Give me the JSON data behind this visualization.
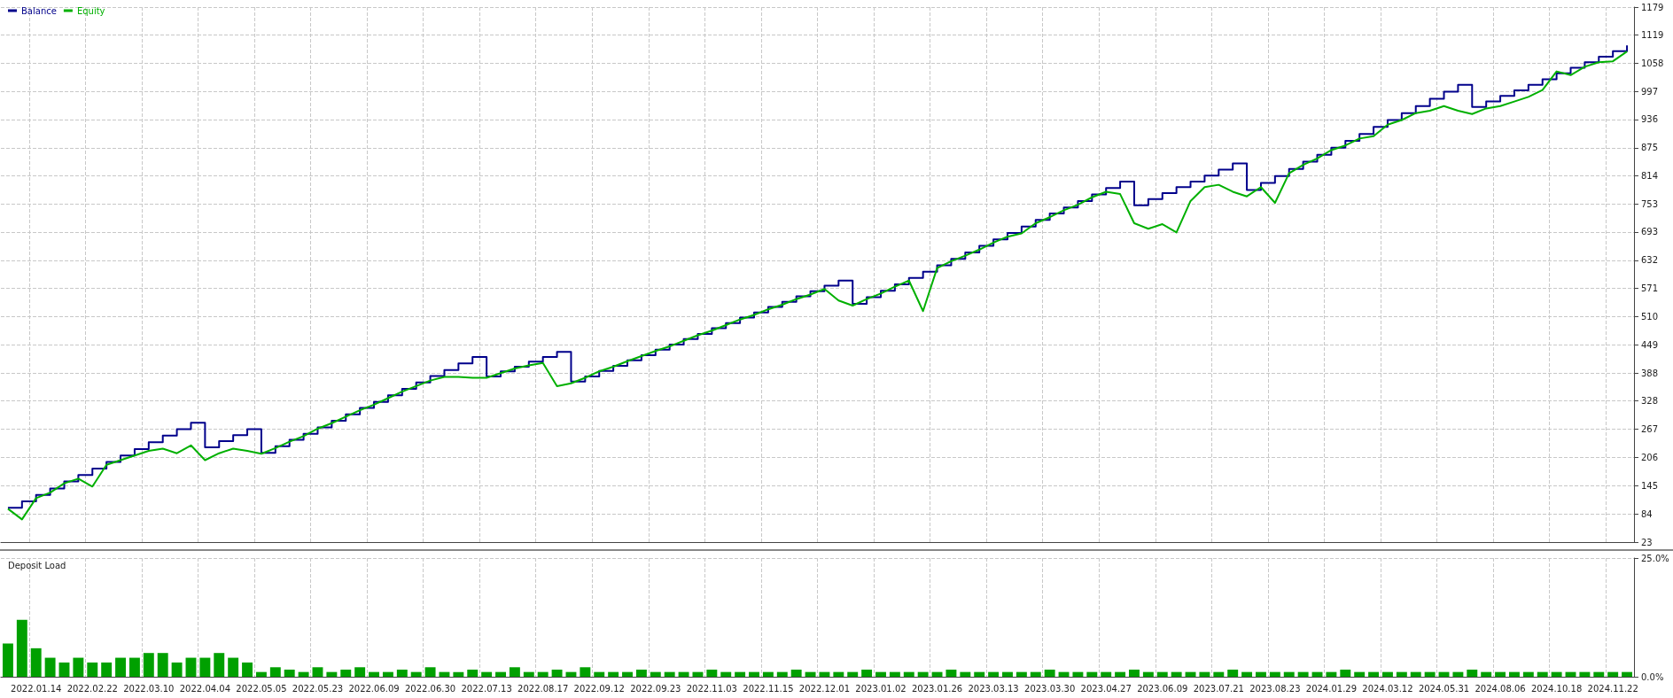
{
  "chart_data": [
    {
      "type": "line",
      "legend": "top left",
      "grid": true,
      "tick_labels": "y",
      "categories": [
        null,
        null,
        "2022.01.14",
        null,
        null,
        null,
        "2022.02.22",
        null,
        null,
        null,
        "2022.03.10",
        null,
        null,
        null,
        "2022.04.04",
        null,
        null,
        null,
        "2022.05.05",
        null,
        null,
        null,
        "2022.05.23",
        null,
        null,
        null,
        "2022.06.09",
        null,
        null,
        null,
        "2022.06.30",
        null,
        null,
        null,
        "2022.07.13",
        null,
        null,
        null,
        "2022.08.17",
        null,
        null,
        null,
        "2022.09.12",
        null,
        null,
        null,
        "2022.09.23",
        null,
        null,
        null,
        "2022.11.03",
        null,
        null,
        null,
        "2022.11.15",
        null,
        null,
        null,
        "2022.12.01",
        null,
        null,
        null,
        "2023.01.02",
        null,
        null,
        null,
        "2023.01.26",
        null,
        null,
        null,
        "2023.03.13",
        null,
        null,
        null,
        "2023.03.30",
        null,
        null,
        null,
        "2023.04.27",
        null,
        null,
        null,
        "2023.06.09",
        null,
        null,
        null,
        "2023.07.21",
        null,
        null,
        null,
        "2023.08.23",
        null,
        null,
        null,
        "2024.01.29",
        null,
        null,
        null,
        "2024.03.12",
        null,
        null,
        null,
        "2024.05.31",
        null,
        null,
        null,
        "2024.08.06",
        null,
        null,
        null,
        "2024.10.18",
        null,
        null,
        null,
        "2024.11.22",
        null
      ],
      "ylim": [
        23,
        1179
      ],
      "yticks": [
        23,
        84,
        145,
        206,
        267,
        328,
        388,
        449,
        510,
        571,
        632,
        693,
        753,
        814,
        875,
        936,
        997,
        1058,
        1119,
        1179
      ],
      "series": [
        {
          "name": "Balance",
          "type": "step",
          "color": "#00008b",
          "values": [
            97,
            111,
            125,
            139,
            154,
            168,
            182,
            196,
            210,
            224,
            239,
            253,
            267,
            281,
            228,
            241,
            254,
            267,
            216,
            230,
            244,
            257,
            271,
            285,
            299,
            313,
            326,
            340,
            354,
            368,
            382,
            395,
            409,
            423,
            381,
            392,
            402,
            413,
            423,
            434,
            370,
            381,
            393,
            404,
            416,
            427,
            439,
            450,
            462,
            473,
            485,
            496,
            508,
            519,
            531,
            542,
            554,
            565,
            577,
            588,
            538,
            552,
            566,
            580,
            594,
            607,
            621,
            635,
            649,
            663,
            677,
            691,
            705,
            719,
            733,
            746,
            760,
            774,
            788,
            802,
            751,
            764,
            777,
            790,
            802,
            815,
            828,
            841,
            784,
            799,
            814,
            829,
            845,
            860,
            875,
            890,
            905,
            920,
            935,
            950,
            965,
            981,
            996,
            1011,
            963,
            975,
            987,
            999,
            1011,
            1023,
            1036,
            1048,
            1060,
            1072,
            1084,
            1096
          ]
        },
        {
          "name": "Equity",
          "type": "line",
          "color": "#00b000",
          "values": [
            95,
            72,
            118,
            130,
            150,
            160,
            143,
            190,
            200,
            210,
            220,
            225,
            215,
            232,
            200,
            215,
            225,
            220,
            214,
            226,
            240,
            252,
            268,
            280,
            294,
            308,
            320,
            334,
            348,
            360,
            372,
            380,
            380,
            378,
            378,
            388,
            398,
            405,
            410,
            360,
            366,
            378,
            392,
            402,
            414,
            425,
            436,
            446,
            458,
            470,
            480,
            492,
            504,
            514,
            526,
            536,
            548,
            558,
            570,
            545,
            534,
            548,
            560,
            575,
            588,
            522,
            615,
            630,
            642,
            655,
            670,
            683,
            690,
            712,
            725,
            740,
            752,
            768,
            780,
            775,
            712,
            700,
            710,
            692,
            760,
            790,
            795,
            780,
            770,
            790,
            756,
            820,
            838,
            852,
            870,
            880,
            895,
            900,
            925,
            935,
            950,
            955,
            965,
            955,
            948,
            960,
            965,
            975,
            985,
            1000,
            1040,
            1032,
            1050,
            1060,
            1062,
            1083
          ]
        }
      ]
    },
    {
      "type": "bar",
      "title": "Deposit Load",
      "grid": true,
      "color": "#00a000",
      "categories": [
        null,
        null,
        "2022.01.14",
        null,
        null,
        null,
        "2022.02.22",
        null,
        null,
        null,
        "2022.03.10",
        null,
        null,
        null,
        "2022.04.04",
        null,
        null,
        null,
        "2022.05.05",
        null,
        null,
        null,
        "2022.05.23",
        null,
        null,
        null,
        "2022.06.09",
        null,
        null,
        null,
        "2022.06.30",
        null,
        null,
        null,
        "2022.07.13",
        null,
        null,
        null,
        "2022.08.17",
        null,
        null,
        null,
        "2022.09.12",
        null,
        null,
        null,
        "2022.09.23",
        null,
        null,
        null,
        "2022.11.03",
        null,
        null,
        null,
        "2022.11.15",
        null,
        null,
        null,
        "2022.12.01",
        null,
        null,
        null,
        "2023.01.02",
        null,
        null,
        null,
        "2023.01.26",
        null,
        null,
        null,
        "2023.03.13",
        null,
        null,
        null,
        "2023.03.30",
        null,
        null,
        null,
        "2023.04.27",
        null,
        null,
        null,
        "2023.06.09",
        null,
        null,
        null,
        "2023.07.21",
        null,
        null,
        null,
        "2023.08.23",
        null,
        null,
        null,
        "2024.01.29",
        null,
        null,
        null,
        "2024.03.12",
        null,
        null,
        null,
        "2024.05.31",
        null,
        null,
        null,
        "2024.08.06",
        null,
        null,
        null,
        "2024.10.18",
        null,
        null,
        null,
        "2024.11.22",
        null
      ],
      "ylim": [
        0,
        25
      ],
      "yticks": [
        {
          "value": 0,
          "label": "0.0%"
        },
        {
          "value": 25,
          "label": "25.0%"
        }
      ],
      "values": [
        7,
        12,
        6,
        4,
        3,
        4,
        3,
        3,
        4,
        4,
        5,
        5,
        3,
        4,
        4,
        5,
        4,
        3,
        1,
        2,
        1.5,
        1,
        2,
        1,
        1.5,
        2,
        1,
        1,
        1.5,
        1,
        2,
        1,
        1,
        1.5,
        1,
        1,
        2,
        1,
        1,
        1.5,
        1,
        2,
        1,
        1,
        1,
        1.5,
        1,
        1,
        1,
        1,
        1.5,
        1,
        1,
        1,
        1,
        1,
        1.5,
        1,
        1,
        1,
        1,
        1.5,
        1,
        1,
        1,
        1,
        1,
        1.5,
        1,
        1,
        1,
        1,
        1,
        1,
        1.5,
        1,
        1,
        1,
        1,
        1,
        1.5,
        1,
        1,
        1,
        1,
        1,
        1,
        1.5,
        1,
        1,
        1,
        1,
        1,
        1,
        1,
        1.5,
        1,
        1,
        1,
        1,
        1,
        1,
        1,
        1,
        1.5,
        1,
        1,
        1,
        1,
        1,
        1,
        1,
        1,
        1,
        1,
        1
      ]
    }
  ]
}
